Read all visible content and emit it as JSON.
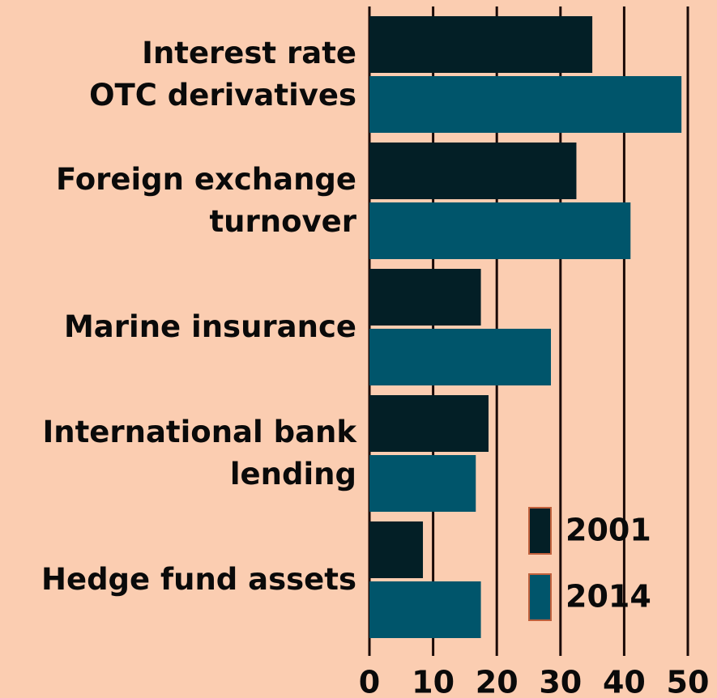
{
  "chart_data": {
    "type": "bar",
    "orientation": "horizontal",
    "categories": [
      "Interest rate\nOTC derivatives",
      "Foreign exchange\nturnover",
      "Marine insurance",
      "International bank\nlending",
      "Hedge fund assets"
    ],
    "series": [
      {
        "name": "2001",
        "color": "#031f26",
        "values": [
          35,
          32.5,
          17.5,
          18.7,
          8.4
        ]
      },
      {
        "name": "2014",
        "color": "#00556b",
        "values": [
          49,
          41,
          28.5,
          16.7,
          17.5
        ]
      }
    ],
    "xlim": [
      0,
      50
    ],
    "xticks": [
      0,
      10,
      20,
      30,
      40,
      50
    ],
    "grid": true
  }
}
